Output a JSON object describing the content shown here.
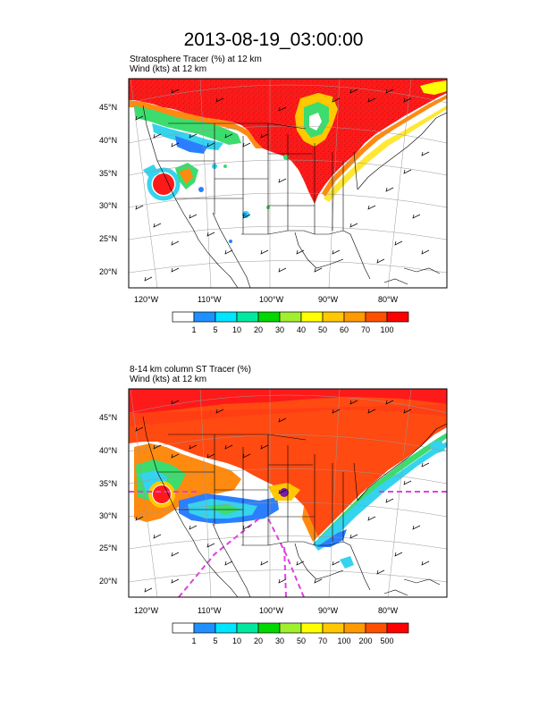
{
  "title": "2013-08-19_03:00:00",
  "panels": [
    {
      "label_line1": "Stratosphere Tracer   (%)     at   12 km",
      "label_line2": "Wind   (kts)     at   12 km",
      "lat_labels": [
        "45°N",
        "40°N",
        "35°N",
        "30°N",
        "25°N",
        "20°N"
      ],
      "lon_labels": [
        "120°W",
        "110°W",
        "100°W",
        "90°W",
        "80°W"
      ],
      "colorbar_labels": [
        "1",
        "5",
        "10",
        "20",
        "30",
        "40",
        "50",
        "60",
        "70",
        "100"
      ]
    },
    {
      "label_line1": "8-14 km column ST Tracer   (%)",
      "label_line2": "Wind   (kts)     at   12 km",
      "lat_labels": [
        "45°N",
        "40°N",
        "35°N",
        "30°N",
        "25°N",
        "20°N"
      ],
      "lon_labels": [
        "120°W",
        "110°W",
        "100°W",
        "90°W",
        "80°W"
      ],
      "colorbar_labels": [
        "1",
        "5",
        "10",
        "20",
        "30",
        "50",
        "70",
        "100",
        "200",
        "500"
      ]
    }
  ],
  "colorbar_colors": [
    "#ffffff",
    "#1e90ff",
    "#00e5ff",
    "#00e8a0",
    "#00d800",
    "#a0f030",
    "#ffff00",
    "#ffc800",
    "#ff9a00",
    "#ff5000",
    "#ff0000"
  ],
  "colors": {
    "tracer_high": "#ff4a12",
    "tracer_red": "#ff1a1a",
    "tracer_orange": "#ff8a10",
    "tracer_green": "#3cdc6e",
    "tracer_cyan": "#35d3ee",
    "tracer_blue": "#2b7fff",
    "trough_line": "#e040e0"
  }
}
